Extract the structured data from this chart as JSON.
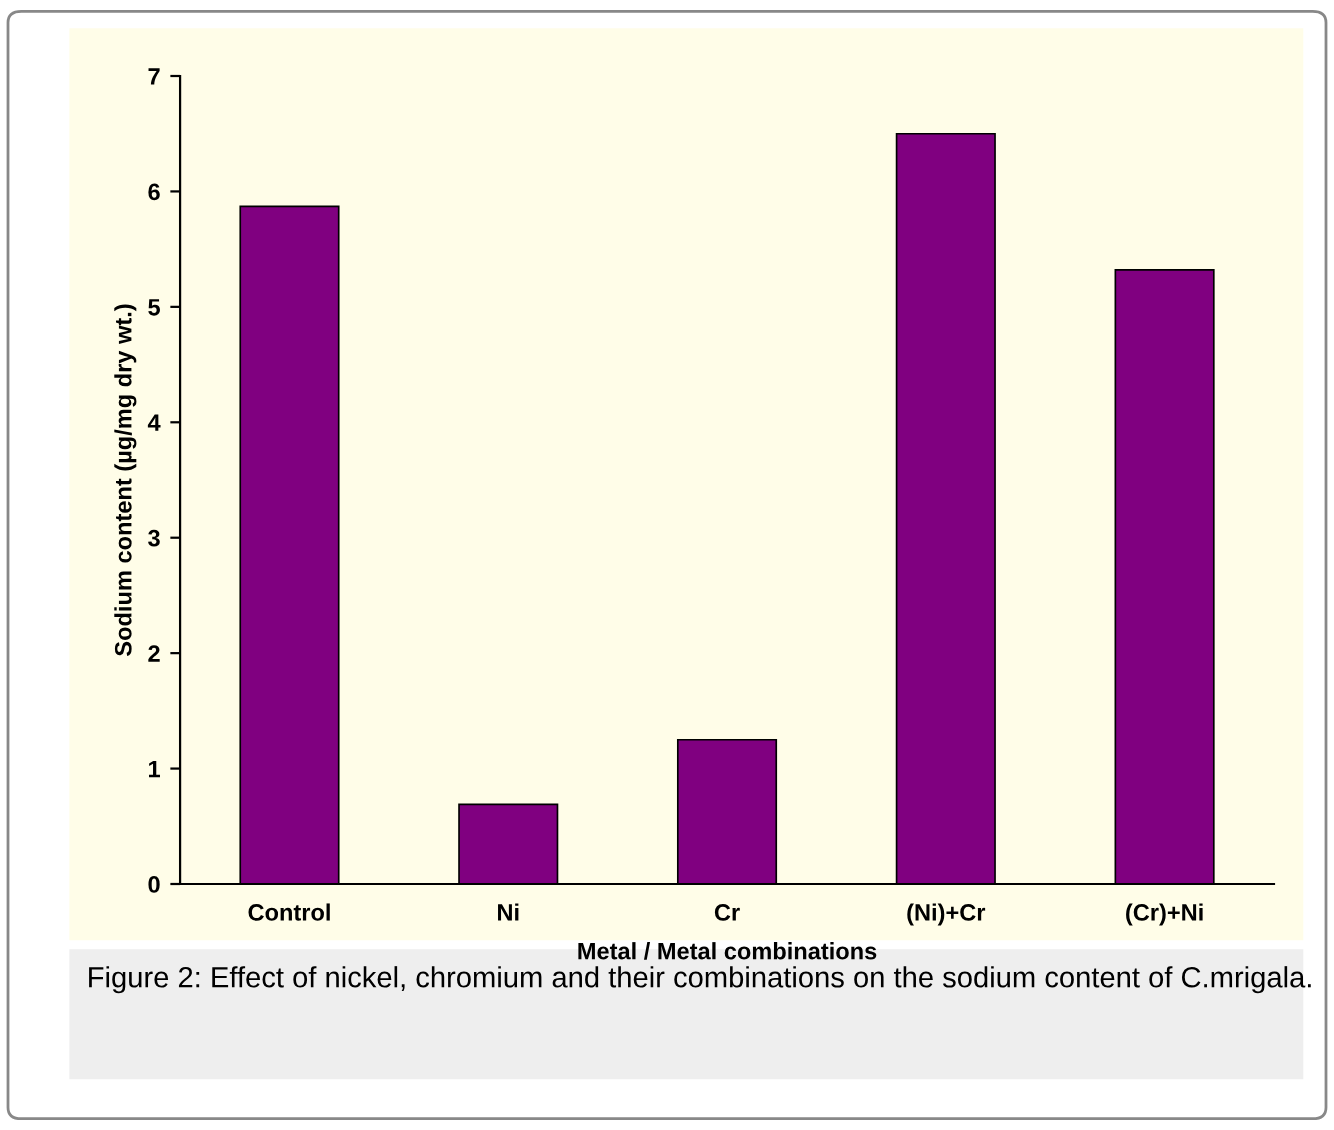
{
  "chart_data": {
    "type": "bar",
    "xlabel": "Metal / Metal combinations",
    "ylabel": "Sodium content (µg/mg dry wt.)",
    "categories": [
      "Control",
      "Ni",
      "Cr",
      "(Ni)+Cr",
      "(Cr)+Ni"
    ],
    "values": [
      5.87,
      0.69,
      1.25,
      6.5,
      5.32
    ],
    "color": "#800080",
    "ylim": [
      0,
      7
    ],
    "yticks": [
      0,
      1,
      2,
      3,
      4,
      5,
      6,
      7
    ],
    "grid": false,
    "annotations": [
      "Figure 2: Effect of nickel, chromium and their combinations on the sodium content of C.mrigala."
    ]
  }
}
